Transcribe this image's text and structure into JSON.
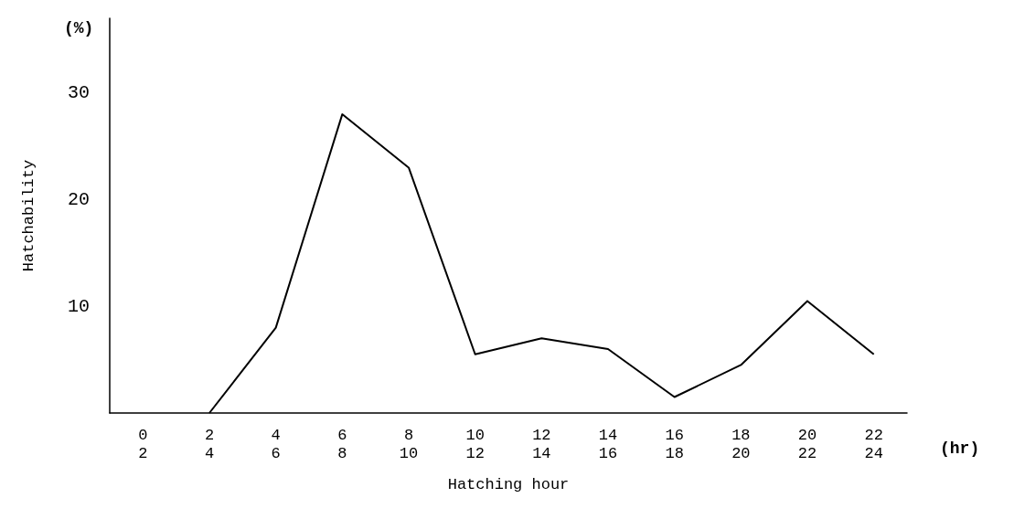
{
  "chart_data": {
    "type": "line",
    "xlabel": "Hatching hour",
    "ylabel": "Hatchability",
    "annotations": [
      "(%)",
      "(hr)"
    ],
    "categories": [
      "0\n2",
      "2\n4",
      "4\n6",
      "6\n8",
      "8\n10",
      "10\n12",
      "12\n14",
      "14\n16",
      "16\n18",
      "18\n20",
      "20\n22",
      "22\n24"
    ],
    "values": [
      null,
      0,
      8,
      28,
      23,
      5.5,
      7,
      6,
      1.5,
      4.5,
      10.5,
      5.5
    ],
    "color": "#000000",
    "ylim": [
      0,
      37
    ],
    "yticks": [
      10,
      20,
      30
    ],
    "grid": false,
    "marker": "none",
    "line_style": "solid"
  }
}
